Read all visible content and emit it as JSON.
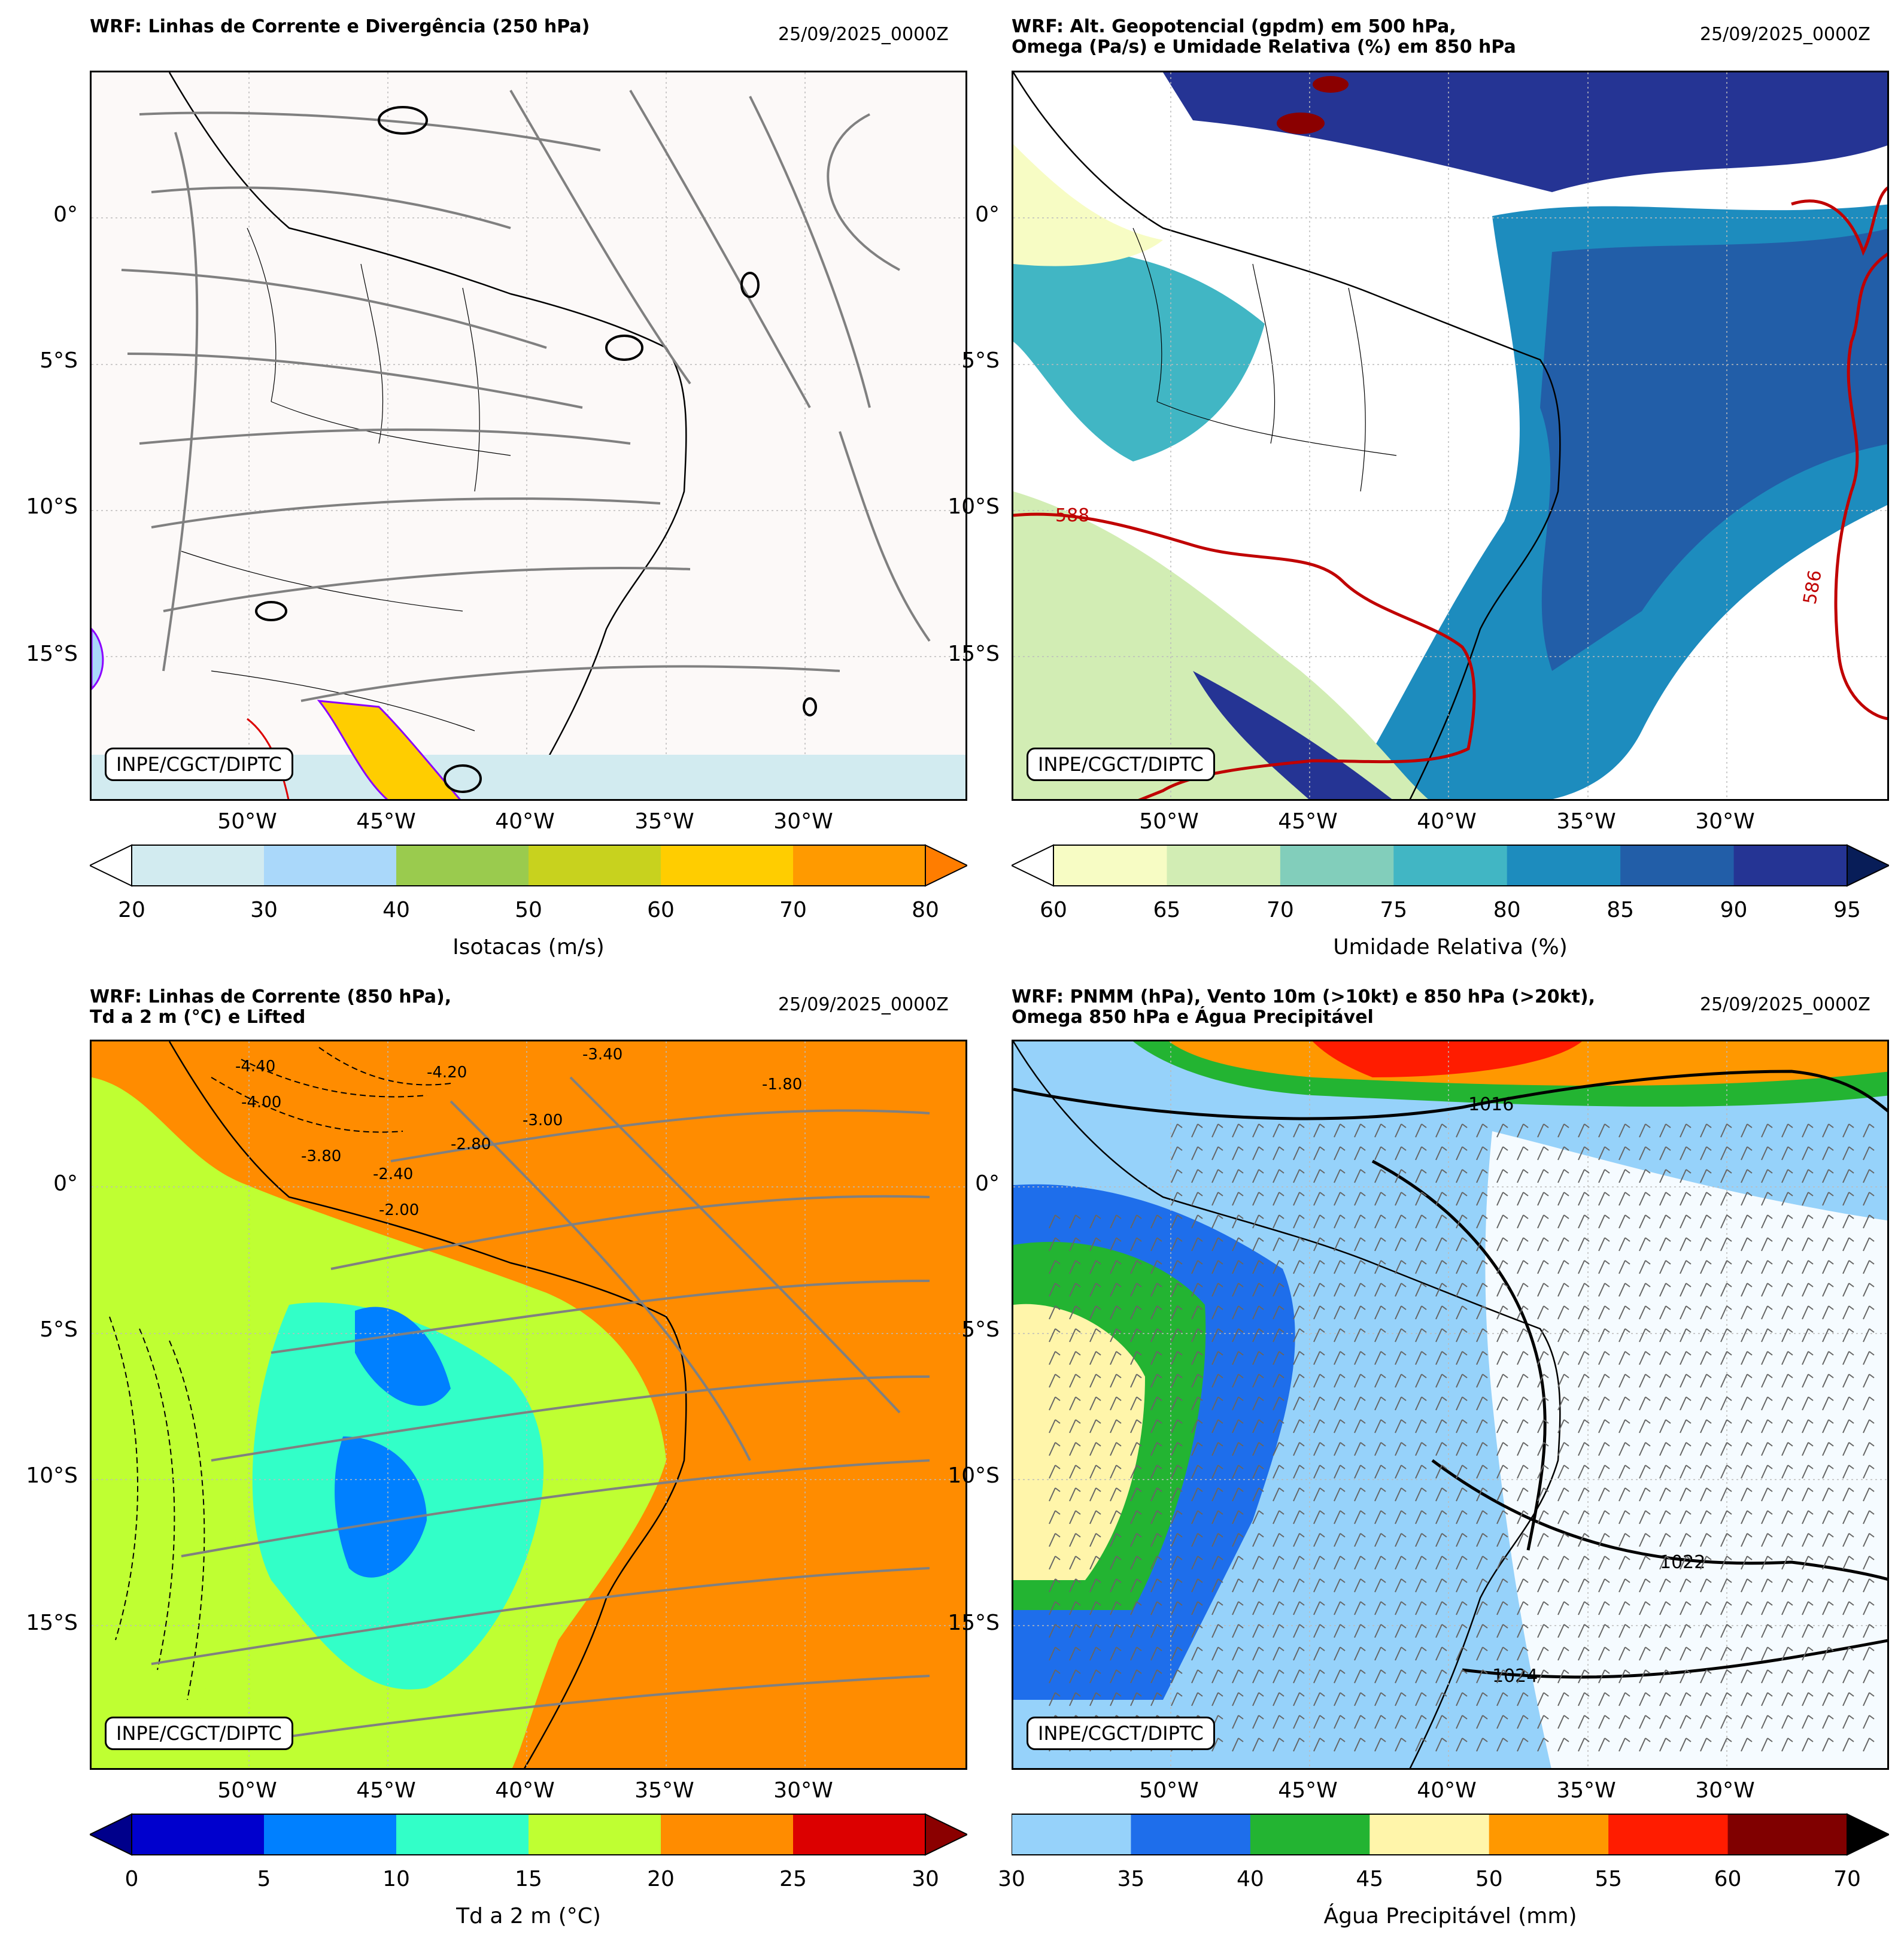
{
  "panels": [
    {
      "title": "WRF: Linhas de Corrente e Divergência (250 hPa)",
      "date": "25/09/2025_0000Z",
      "credit": "INPE/CGCT/DIPTC",
      "lat_labels": [
        "0°",
        "5°S",
        "10°S",
        "15°S"
      ],
      "lon_labels": [
        "50°W",
        "45°W",
        "40°W",
        "35°W",
        "30°W"
      ],
      "colorbar": {
        "label": "Isotacas (m/s)",
        "ticks": [
          "20",
          "30",
          "40",
          "50",
          "60",
          "70",
          "80"
        ],
        "colors": [
          "#d2ebf0",
          "#aad8fa",
          "#9acb4e",
          "#c8d21e",
          "#ffcd00",
          "#ff9a00",
          "#ff7d00"
        ]
      },
      "contour_labels": []
    },
    {
      "title": "WRF: Alt. Geopotencial (gpdm) em 500 hPa,",
      "title2": "Omega (Pa/s) e Umidade Relativa (%) em 850 hPa",
      "date": "25/09/2025_0000Z",
      "credit": "INPE/CGCT/DIPTC",
      "lat_labels": [
        "0°",
        "5°S",
        "10°S",
        "15°S"
      ],
      "lon_labels": [
        "50°W",
        "45°W",
        "40°W",
        "35°W",
        "30°W"
      ],
      "colorbar": {
        "label": "Umidade Relativa (%)",
        "ticks": [
          "60",
          "65",
          "70",
          "75",
          "80",
          "85",
          "90",
          "95"
        ],
        "colors": [
          "#f7fcc4",
          "#d2edb4",
          "#82cebb",
          "#41b6c4",
          "#1d8cbe",
          "#225ea8",
          "#253494",
          "#081d58"
        ]
      },
      "contour_labels": [
        "588",
        "586"
      ]
    },
    {
      "title": "WRF: Linhas de Corrente (850 hPa),",
      "title2": "Td a 2 m (°C) e Lifted",
      "date": "25/09/2025_0000Z",
      "credit": "INPE/CGCT/DIPTC",
      "lat_labels": [
        "0°",
        "5°S",
        "10°S",
        "15°S"
      ],
      "lon_labels": [
        "50°W",
        "45°W",
        "40°W",
        "35°W",
        "30°W"
      ],
      "colorbar": {
        "label": "Td a 2 m (°C)",
        "ticks": [
          "0",
          "5",
          "10",
          "15",
          "20",
          "25",
          "30"
        ],
        "colors": [
          "#0000cd",
          "#0080ff",
          "#32ffc8",
          "#bfff32",
          "#ff8c00",
          "#dc0000",
          "#8b0000"
        ]
      },
      "contour_labels": [
        "-4.40",
        "-4.20",
        "-4.00",
        "-3.40",
        "-3.00",
        "-2.80",
        "-2.40",
        "-2.00",
        "-3.80",
        "-1.80"
      ]
    },
    {
      "title": "WRF: PNMM (hPa), Vento 10m (>10kt) e 850 hPa (>20kt),",
      "title2": "Omega 850 hPa e Água Precipitável",
      "date": "25/09/2025_0000Z",
      "credit": "INPE/CGCT/DIPTC",
      "lat_labels": [
        "0°",
        "5°S",
        "10°S",
        "15°S"
      ],
      "lon_labels": [
        "50°W",
        "45°W",
        "40°W",
        "35°W",
        "30°W"
      ],
      "colorbar": {
        "label": "Água Precipitável (mm)",
        "ticks": [
          "30",
          "35",
          "40",
          "45",
          "50",
          "55",
          "60",
          "70"
        ],
        "colors": [
          "#96d2fa",
          "#1e6eeb",
          "#23b432",
          "#fff5aa",
          "#ff9800",
          "#ff1c00",
          "#800000",
          "#000000"
        ]
      },
      "contour_labels": [
        "1016",
        "1022",
        "1024"
      ]
    }
  ]
}
